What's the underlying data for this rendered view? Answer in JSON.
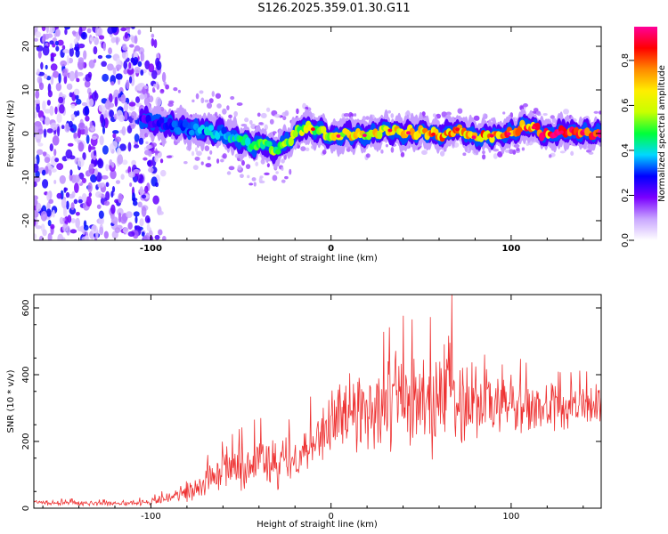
{
  "title": "S126.2025.359.01.30.G11",
  "chart_data": [
    {
      "type": "heatmap",
      "title": "",
      "xlabel": "Height of straight line (km)",
      "ylabel": "Frequency (Hz)",
      "xlim": [
        -165,
        150
      ],
      "ylim": [
        -24.5,
        24.5
      ],
      "x_ticks": [
        -100,
        0,
        100
      ],
      "x_tick_labels": [
        "-100",
        "0",
        "100"
      ],
      "y_ticks": [
        -20,
        -10,
        0,
        10,
        20
      ],
      "y_tick_labels": [
        "-20",
        "-10",
        "0",
        "10",
        "20"
      ],
      "colorbar": {
        "label": "Normalized spectral amplitude",
        "range": [
          0.0,
          0.95
        ],
        "ticks": [
          0.0,
          0.2,
          0.4,
          0.6,
          0.8
        ],
        "tick_labels": [
          "0.0",
          "0.2",
          "0.4",
          "0.6",
          "0.8"
        ],
        "colors": [
          "#ffffff",
          "#c9a6ff",
          "#7a00ff",
          "#0000ff",
          "#00d8ff",
          "#00ff3a",
          "#c8ff00",
          "#ffee00",
          "#ff8a00",
          "#ff0000",
          "#ff0099"
        ]
      },
      "trace": {
        "x": [
          -105,
          -90,
          -75,
          -60,
          -50,
          -43,
          -37,
          -32,
          -25,
          -15,
          -5,
          0,
          10,
          20,
          30,
          40,
          50,
          60,
          70,
          80,
          90,
          100,
          110,
          120,
          130,
          140,
          148
        ],
        "freq": [
          3.0,
          2.0,
          1.0,
          0.0,
          -1.5,
          -3.0,
          -2.0,
          -4.0,
          -2.0,
          1.5,
          0.5,
          -1.0,
          0.0,
          -0.5,
          1.0,
          0.0,
          0.5,
          -0.5,
          1.0,
          -1.0,
          -0.5,
          0.0,
          2.0,
          -0.5,
          0.5,
          0.0,
          0.0
        ],
        "amplitude": [
          0.25,
          0.3,
          0.35,
          0.4,
          0.45,
          0.5,
          0.5,
          0.55,
          0.55,
          0.6,
          0.6,
          0.65,
          0.7,
          0.65,
          0.7,
          0.7,
          0.75,
          0.75,
          0.8,
          0.75,
          0.8,
          0.85,
          0.85,
          0.85,
          0.9,
          0.9,
          0.9
        ]
      },
      "noise_region_x": [
        -165,
        -90
      ]
    },
    {
      "type": "line",
      "title": "",
      "xlabel": "Height of straight line (km)",
      "ylabel": "SNR (10 * v/v)",
      "xlim": [
        -165,
        150
      ],
      "ylim": [
        0,
        640
      ],
      "x_ticks": [
        -100,
        0,
        100
      ],
      "x_tick_labels": [
        "-100",
        "0",
        "100"
      ],
      "y_ticks": [
        0,
        200,
        400,
        600
      ],
      "y_tick_labels": [
        "0",
        "200",
        "400",
        "600"
      ],
      "line_color": "#ee3333",
      "series": [
        {
          "name": "SNR",
          "x": [
            -165,
            -150,
            -130,
            -110,
            -100,
            -95,
            -90,
            -85,
            -80,
            -70,
            -60,
            -50,
            -40,
            -30,
            -20,
            -10,
            0,
            10,
            20,
            30,
            40,
            50,
            60,
            70,
            80,
            90,
            100,
            110,
            120,
            130,
            140,
            150
          ],
          "mean": [
            18,
            16,
            15,
            16,
            20,
            25,
            30,
            38,
            50,
            80,
            110,
            130,
            150,
            120,
            150,
            200,
            260,
            290,
            300,
            310,
            330,
            320,
            330,
            350,
            330,
            320,
            310,
            300,
            300,
            300,
            310,
            300
          ],
          "spread": [
            10,
            10,
            8,
            10,
            12,
            18,
            22,
            28,
            35,
            55,
            70,
            85,
            95,
            90,
            100,
            110,
            120,
            130,
            150,
            170,
            190,
            180,
            200,
            200,
            160,
            130,
            120,
            100,
            90,
            80,
            80,
            70
          ],
          "peak": {
            "x": 67,
            "y": 640
          }
        }
      ]
    }
  ]
}
